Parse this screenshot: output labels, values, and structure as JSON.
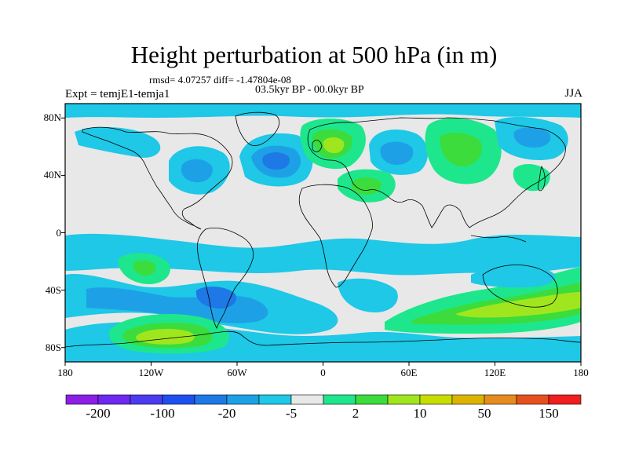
{
  "title": "Height perturbation at 500 hPa (in m)",
  "stats": "rmsd= 4.07257 diff= -1.47804e-08",
  "period": "03.5kyr BP - 00.0kyr BP",
  "expt": "Expt = temjE1-temja1",
  "season": "JJA",
  "axes": {
    "lat_labels": [
      "80N",
      "40N",
      "0",
      "40S",
      "80S"
    ],
    "lat_values": [
      80,
      40,
      0,
      -40,
      -80
    ],
    "lon_labels": [
      "180",
      "120W",
      "60W",
      "0",
      "60E",
      "120E",
      "180"
    ],
    "lon_values": [
      -180,
      -120,
      -60,
      0,
      60,
      120,
      180
    ],
    "lat_range": [
      -90,
      90
    ],
    "lon_range": [
      -180,
      180
    ]
  },
  "colorbar": {
    "colors": [
      "#8C1EE6",
      "#6E28F0",
      "#4B3CF0",
      "#1E50F0",
      "#1E78E6",
      "#1EA0E6",
      "#1EC8E6",
      "#E8E8E8",
      "#1EE68C",
      "#3CDC3C",
      "#A0E61E",
      "#C8DC00",
      "#DCB400",
      "#E68C1E",
      "#E6501E",
      "#F01E1E"
    ],
    "labels": [
      "-200",
      "-100",
      "-20",
      "-5",
      "2",
      "10",
      "50",
      "150"
    ]
  },
  "field_colors": {
    "neutral": "#E8E8E8",
    "neg_light": "#1EC8E6",
    "neg_mid": "#1EA0E6",
    "neg_strong": "#1E78E6",
    "pos_light": "#1EE68C",
    "pos_mid": "#3CDC3C",
    "pos_strong": "#A0E61E",
    "pos_peak": "#C8DC00"
  }
}
